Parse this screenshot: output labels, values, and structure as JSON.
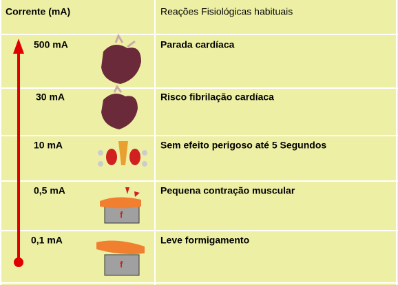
{
  "table": {
    "header": [
      "Corrente (mA)",
      "Reações Fisiológicas habituais"
    ],
    "rows": [
      [
        "500 mA",
        "Parada cardíaca"
      ],
      [
        "30 mA",
        "Risco fibrilação cardíaca"
      ],
      [
        "10 mA",
        "Sem efeito perigoso até 5 Segundos"
      ],
      [
        "0,5 mA",
        "Pequena contração muscular"
      ],
      [
        "0,1 mA",
        "Leve formigamento"
      ]
    ]
  }
}
